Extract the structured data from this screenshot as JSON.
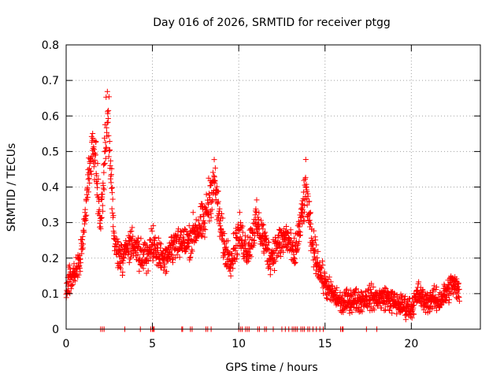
{
  "chart_data": {
    "type": "scatter",
    "title": "Day 016 of 2026, SRMTID for receiver ptgg",
    "xlabel": "GPS time / hours",
    "ylabel": "SRMTID / TECUs",
    "xlim": [
      0,
      24
    ],
    "ylim": [
      0,
      0.8
    ],
    "xticks": [
      "0",
      "5",
      "10",
      "15",
      "20"
    ],
    "yticks": [
      "0",
      "0.1",
      "0.2",
      "0.3",
      "0.4",
      "0.5",
      "0.6",
      "0.7",
      "0.8"
    ],
    "grid": true,
    "marker": "+",
    "marker_color": "#ff0000",
    "series": [
      {
        "name": "SRMTID",
        "trend": [
          [
            0.0,
            0.12
          ],
          [
            0.4,
            0.15
          ],
          [
            0.8,
            0.19
          ],
          [
            1.1,
            0.3
          ],
          [
            1.3,
            0.42
          ],
          [
            1.5,
            0.52
          ],
          [
            1.7,
            0.47
          ],
          [
            2.0,
            0.3
          ],
          [
            2.2,
            0.45
          ],
          [
            2.4,
            0.62
          ],
          [
            2.6,
            0.45
          ],
          [
            2.8,
            0.24
          ],
          [
            3.2,
            0.2
          ],
          [
            3.6,
            0.24
          ],
          [
            4.0,
            0.22
          ],
          [
            4.5,
            0.2
          ],
          [
            5.0,
            0.24
          ],
          [
            5.5,
            0.2
          ],
          [
            6.0,
            0.22
          ],
          [
            6.5,
            0.25
          ],
          [
            7.0,
            0.24
          ],
          [
            7.5,
            0.28
          ],
          [
            8.0,
            0.3
          ],
          [
            8.3,
            0.37
          ],
          [
            8.6,
            0.42
          ],
          [
            8.9,
            0.3
          ],
          [
            9.2,
            0.22
          ],
          [
            9.6,
            0.2
          ],
          [
            10.0,
            0.27
          ],
          [
            10.5,
            0.22
          ],
          [
            11.0,
            0.3
          ],
          [
            11.4,
            0.26
          ],
          [
            11.8,
            0.2
          ],
          [
            12.3,
            0.24
          ],
          [
            12.8,
            0.26
          ],
          [
            13.2,
            0.2
          ],
          [
            13.6,
            0.3
          ],
          [
            13.9,
            0.4
          ],
          [
            14.2,
            0.25
          ],
          [
            14.5,
            0.2
          ],
          [
            14.8,
            0.15
          ],
          [
            15.2,
            0.11
          ],
          [
            15.6,
            0.09
          ],
          [
            16.0,
            0.07
          ],
          [
            16.5,
            0.085
          ],
          [
            17.0,
            0.08
          ],
          [
            17.5,
            0.09
          ],
          [
            18.0,
            0.085
          ],
          [
            18.5,
            0.09
          ],
          [
            19.0,
            0.075
          ],
          [
            19.5,
            0.065
          ],
          [
            20.0,
            0.06
          ],
          [
            20.4,
            0.1
          ],
          [
            20.8,
            0.075
          ],
          [
            21.2,
            0.085
          ],
          [
            21.6,
            0.08
          ],
          [
            22.0,
            0.1
          ],
          [
            22.4,
            0.13
          ],
          [
            22.8,
            0.1
          ]
        ],
        "spread": 0.035,
        "point_spacing_hours": 0.012
      }
    ],
    "zero_points_x": [
      2.0,
      2.1,
      2.2,
      3.4,
      4.3,
      4.9,
      5.0,
      5.05,
      5.1,
      6.7,
      6.75,
      7.2,
      7.3,
      8.1,
      8.2,
      8.4,
      10.0,
      10.1,
      10.2,
      10.4,
      10.5,
      10.6,
      11.1,
      11.2,
      11.5,
      11.6,
      12.0,
      12.5,
      12.7,
      12.9,
      13.1,
      13.2,
      13.3,
      13.4,
      13.6,
      13.7,
      13.8,
      14.0,
      14.1,
      14.3,
      14.5,
      14.7,
      14.9,
      15.9,
      16.0,
      16.05,
      17.4,
      18.0
    ]
  }
}
